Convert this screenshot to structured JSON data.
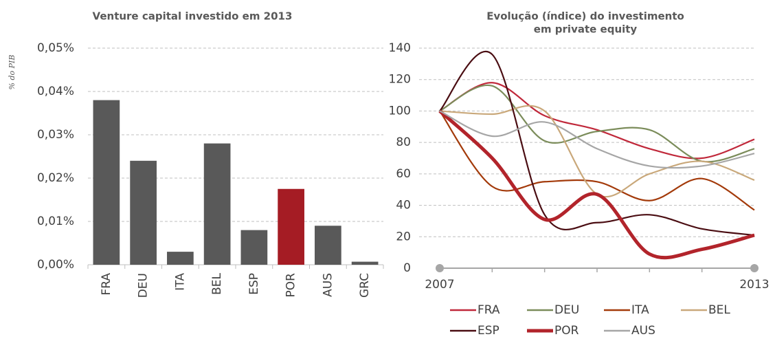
{
  "chart_data": [
    {
      "type": "bar",
      "title": "Venture capital investido em 2013",
      "y_label": "% do PIB",
      "categories": [
        "FRA",
        "DEU",
        "ITA",
        "BEL",
        "ESP",
        "POR",
        "AUS",
        "GRC"
      ],
      "values": [
        0.038,
        0.024,
        0.003,
        0.028,
        0.008,
        0.0175,
        0.009,
        0.0007
      ],
      "colors": [
        "#595959",
        "#595959",
        "#595959",
        "#595959",
        "#595959",
        "#a51c24",
        "#595959",
        "#595959"
      ],
      "ylim": [
        0,
        0.05
      ],
      "yticks": [
        {
          "value": 0,
          "label": "0,00%"
        },
        {
          "value": 0.01,
          "label": "0,01%"
        },
        {
          "value": 0.02,
          "label": "0,02%"
        },
        {
          "value": 0.03,
          "label": "0,03%"
        },
        {
          "value": 0.04,
          "label": "0,04%"
        },
        {
          "value": 0.05,
          "label": "0,05%"
        }
      ],
      "grid": true
    },
    {
      "type": "line",
      "title": [
        "Evolução (índice) do investimento",
        "em private equity"
      ],
      "x": [
        2007,
        2008,
        2009,
        2010,
        2011,
        2012,
        2013
      ],
      "xlim": [
        2007,
        2013
      ],
      "xticks": [
        2007,
        2013
      ],
      "ylim": [
        0,
        140
      ],
      "yticks": [
        0,
        20,
        40,
        60,
        80,
        100,
        120,
        140
      ],
      "grid": true,
      "series": [
        {
          "name": "FRA",
          "color": "#c0283a",
          "values": [
            100,
            118,
            97,
            88,
            76,
            70,
            82
          ]
        },
        {
          "name": "DEU",
          "color": "#7b8c5a",
          "values": [
            100,
            116,
            81,
            87,
            88,
            68,
            76
          ]
        },
        {
          "name": "ITA",
          "color": "#a33a0a",
          "values": [
            100,
            52,
            55,
            55,
            43,
            57,
            37
          ]
        },
        {
          "name": "BEL",
          "color": "#c9a87a",
          "values": [
            100,
            98,
            100,
            47,
            60,
            68,
            56
          ]
        },
        {
          "name": "ESP",
          "color": "#4a0d12",
          "values": [
            100,
            136,
            34,
            29,
            34,
            25,
            21
          ]
        },
        {
          "name": "POR",
          "color": "#b2242b",
          "values": [
            100,
            70,
            31,
            47,
            9,
            12,
            21
          ],
          "width": 5
        },
        {
          "name": "AUS",
          "color": "#a6a6a6",
          "values": [
            100,
            84,
            93,
            76,
            65,
            65,
            73
          ]
        }
      ]
    }
  ]
}
